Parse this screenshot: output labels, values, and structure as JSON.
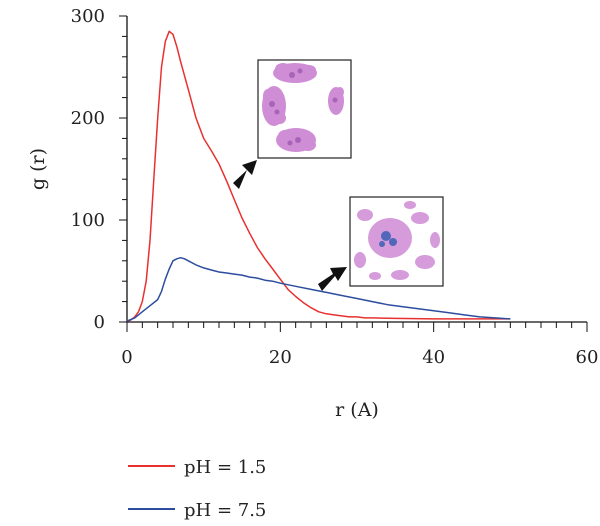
{
  "chart_data": {
    "type": "line",
    "xlabel": "r (A)",
    "ylabel": "g (r)",
    "xlim": [
      0,
      60
    ],
    "ylim": [
      0,
      300
    ],
    "x_ticks": [
      0,
      20,
      40,
      60
    ],
    "y_ticks": [
      0,
      100,
      200,
      300
    ],
    "x_minor_step": 2,
    "y_minor_step": 20,
    "grid": false,
    "legend_position": "bottom",
    "series": [
      {
        "name": "pH = 1.5",
        "color": "#e8312f",
        "points": [
          [
            0,
            1
          ],
          [
            0.5,
            2
          ],
          [
            1,
            5
          ],
          [
            1.5,
            10
          ],
          [
            2,
            20
          ],
          [
            2.5,
            40
          ],
          [
            3,
            80
          ],
          [
            3.5,
            140
          ],
          [
            4,
            200
          ],
          [
            4.5,
            250
          ],
          [
            5,
            275
          ],
          [
            5.5,
            285
          ],
          [
            6,
            282
          ],
          [
            6.5,
            270
          ],
          [
            7,
            255
          ],
          [
            8,
            228
          ],
          [
            9,
            200
          ],
          [
            10,
            180
          ],
          [
            11,
            168
          ],
          [
            12,
            155
          ],
          [
            13,
            138
          ],
          [
            14,
            120
          ],
          [
            15,
            102
          ],
          [
            16,
            87
          ],
          [
            17,
            73
          ],
          [
            18,
            62
          ],
          [
            19,
            52
          ],
          [
            20,
            42
          ],
          [
            21,
            32
          ],
          [
            22,
            25
          ],
          [
            23,
            19
          ],
          [
            24,
            14
          ],
          [
            25,
            10
          ],
          [
            26,
            8
          ],
          [
            27,
            7
          ],
          [
            28,
            6
          ],
          [
            29,
            5
          ],
          [
            30,
            5
          ],
          [
            31,
            4
          ],
          [
            32,
            4
          ],
          [
            35,
            3.5
          ],
          [
            40,
            3
          ],
          [
            45,
            3
          ],
          [
            50,
            3
          ]
        ]
      },
      {
        "name": "pH = 7.5",
        "color": "#2d4e9e",
        "points": [
          [
            0,
            1
          ],
          [
            1,
            4
          ],
          [
            2,
            10
          ],
          [
            3,
            16
          ],
          [
            4,
            22
          ],
          [
            4.5,
            30
          ],
          [
            5,
            42
          ],
          [
            5.5,
            52
          ],
          [
            6,
            60
          ],
          [
            6.5,
            62
          ],
          [
            7,
            63
          ],
          [
            7.5,
            62
          ],
          [
            8,
            60
          ],
          [
            9,
            56
          ],
          [
            10,
            53
          ],
          [
            11,
            51
          ],
          [
            12,
            49
          ],
          [
            13,
            48
          ],
          [
            14,
            47
          ],
          [
            15,
            46
          ],
          [
            16,
            44
          ],
          [
            17,
            43
          ],
          [
            18,
            41
          ],
          [
            19,
            40
          ],
          [
            20,
            38
          ],
          [
            22,
            35
          ],
          [
            24,
            32
          ],
          [
            26,
            29
          ],
          [
            28,
            26
          ],
          [
            30,
            23
          ],
          [
            32,
            20
          ],
          [
            34,
            17
          ],
          [
            36,
            15
          ],
          [
            38,
            13
          ],
          [
            40,
            11
          ],
          [
            42,
            9
          ],
          [
            44,
            7
          ],
          [
            46,
            5
          ],
          [
            48,
            4
          ],
          [
            50,
            3
          ]
        ]
      }
    ],
    "insets": [
      {
        "icon": "protein-aggregates-inset-icon",
        "theme": "separated-clusters"
      },
      {
        "icon": "protein-dispersed-inset-icon",
        "theme": "dispersed-network"
      }
    ]
  }
}
